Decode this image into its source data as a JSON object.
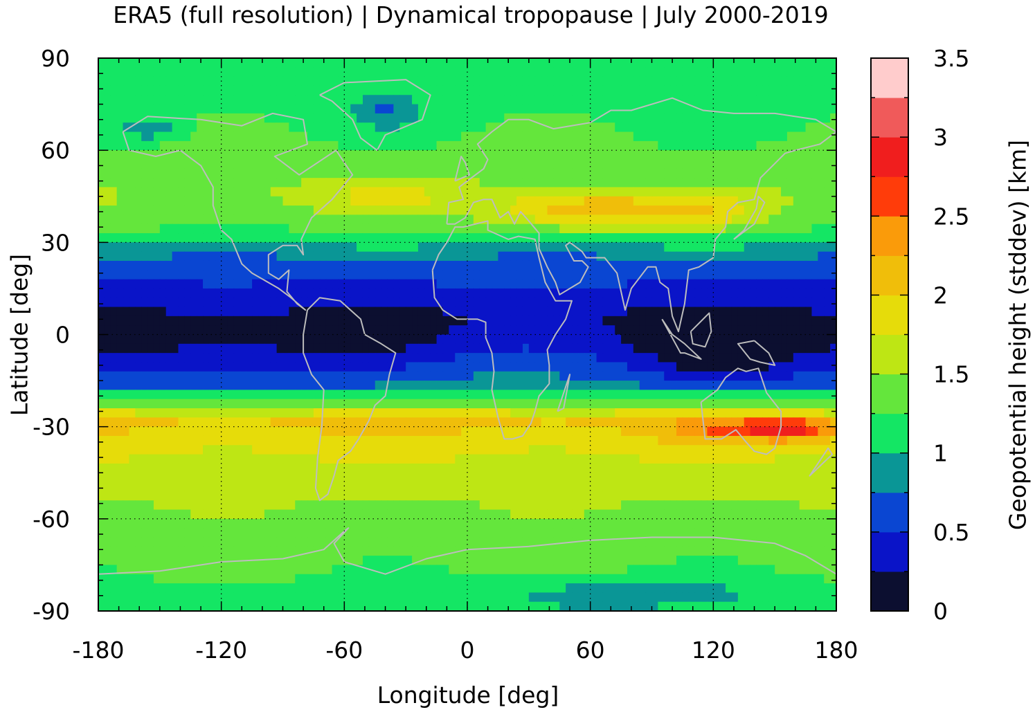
{
  "title": "ERA5 (full resolution) | Dynamical tropopause | July 2000-2019",
  "chart_data": {
    "type": "heatmap",
    "title": "ERA5 (full resolution) | Dynamical tropopause | July 2000-2019",
    "xlabel": "Longitude [deg]",
    "ylabel": "Latitude [deg]",
    "colorbar_label": "Geopotential height (stddev) [km]",
    "xlim": [
      -180,
      180
    ],
    "ylim": [
      -90,
      90
    ],
    "xticks": [
      "-180",
      "-120",
      "-60",
      "0",
      "60",
      "120",
      "180"
    ],
    "yticks": [
      "90",
      "60",
      "30",
      "0",
      "-30",
      "-60",
      "-90"
    ],
    "grid": true,
    "colorbar": {
      "range": [
        0,
        3.5
      ],
      "step": 0.25,
      "ticks": [
        "3.5",
        "3",
        "2.5",
        "2",
        "1.5",
        "1",
        "0.5",
        "0"
      ],
      "colors": [
        "#0c0f30",
        "#0a14c8",
        "#0a46d2",
        "#0a9696",
        "#14e664",
        "#64e63c",
        "#bee614",
        "#e6dc0a",
        "#f0be0a",
        "#fa9b0a",
        "#ff3c0a",
        "#f01e1e",
        "#f05a5a",
        "#ffcccc"
      ]
    },
    "zonal_profile": {
      "lat": [
        -90,
        -75,
        -60,
        -45,
        -33,
        -28,
        -22,
        -16,
        -10,
        -3,
        5,
        15,
        25,
        35,
        45,
        60,
        75,
        90
      ],
      "value": [
        1.1,
        1.3,
        1.45,
        1.6,
        1.95,
        2.05,
        1.3,
        0.65,
        0.4,
        0.15,
        0.15,
        0.45,
        0.75,
        1.3,
        1.5,
        1.3,
        1.15,
        1.1
      ]
    }
  }
}
